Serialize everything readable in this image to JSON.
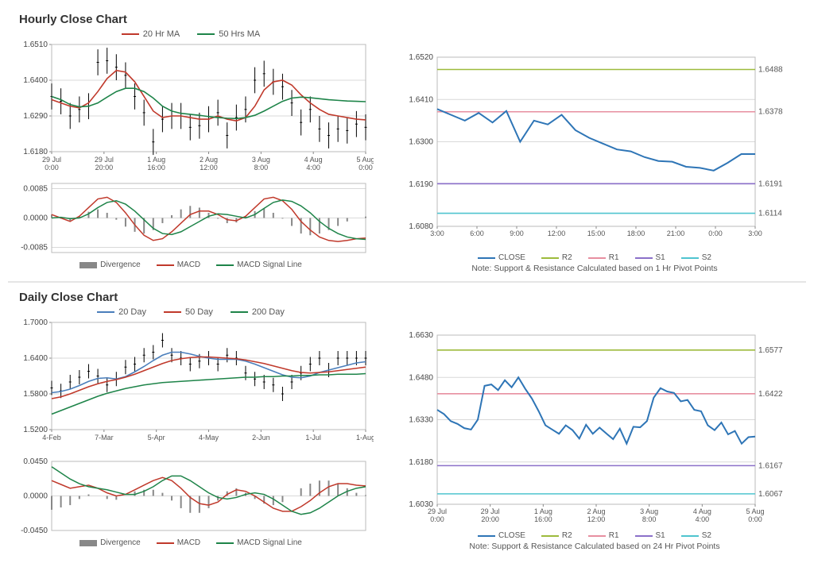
{
  "sections": {
    "hourly": {
      "title": "Hourly Close Chart",
      "price": {
        "legend": [
          {
            "label": "20 Hr MA",
            "color": "#c0392b"
          },
          {
            "label": "50 Hrs MA",
            "color": "#1e8449"
          }
        ],
        "ylim": [
          1.618,
          1.651
        ],
        "yticks": [
          1.618,
          1.629,
          1.64,
          1.651
        ],
        "xlabels": [
          "29 Jul\n0:00",
          "29 Jul\n20:00",
          "1 Aug\n16:00",
          "2 Aug\n12:00",
          "3 Aug\n8:00",
          "4 Aug\n4:00",
          "5 Aug\n0:00"
        ],
        "close": [
          1.635,
          1.6335,
          1.629,
          1.631,
          1.632,
          1.6455,
          1.646,
          1.644,
          1.6415,
          1.635,
          1.63,
          1.621,
          1.628,
          1.629,
          1.629,
          1.6255,
          1.626,
          1.628,
          1.63,
          1.623,
          1.6285,
          1.631,
          1.64,
          1.642,
          1.6395,
          1.638,
          1.633,
          1.627,
          1.631,
          1.625,
          1.623,
          1.625,
          1.6245,
          1.6265,
          1.6255
        ],
        "volatility": 0.004,
        "ma20": [
          1.634,
          1.633,
          1.632,
          1.6315,
          1.633,
          1.6365,
          1.6405,
          1.643,
          1.6425,
          1.6395,
          1.635,
          1.6305,
          1.6285,
          1.629,
          1.629,
          1.6285,
          1.628,
          1.628,
          1.629,
          1.628,
          1.6275,
          1.6285,
          1.632,
          1.637,
          1.6395,
          1.64,
          1.6385,
          1.6355,
          1.633,
          1.631,
          1.6295,
          1.629,
          1.6285,
          1.628,
          1.6278
        ],
        "ma50": [
          1.635,
          1.634,
          1.6325,
          1.6318,
          1.632,
          1.633,
          1.6348,
          1.6365,
          1.6375,
          1.6375,
          1.6365,
          1.6345,
          1.632,
          1.6305,
          1.6298,
          1.6295,
          1.6292,
          1.6288,
          1.6285,
          1.6283,
          1.6282,
          1.6285,
          1.6292,
          1.6305,
          1.632,
          1.6335,
          1.6345,
          1.6348,
          1.6346,
          1.6343,
          1.634,
          1.6338,
          1.6336,
          1.6335,
          1.6334
        ],
        "colors": {
          "ma20": "#c0392b",
          "ma50": "#1e8449",
          "price": "#000000",
          "bg": "#ffffff",
          "grid": "#d9d9d9"
        }
      },
      "macd": {
        "ylim": [
          -0.01,
          0.01
        ],
        "yticks": [
          -0.0085,
          0.0,
          0.0085
        ],
        "macd": [
          0.001,
          0.0,
          -0.001,
          0.0005,
          0.003,
          0.0055,
          0.006,
          0.0045,
          0.0015,
          -0.002,
          -0.005,
          -0.0065,
          -0.006,
          -0.004,
          -0.0015,
          0.001,
          0.002,
          0.002,
          0.001,
          -0.0005,
          -0.0008,
          0.0005,
          0.003,
          0.0055,
          0.006,
          0.005,
          0.0025,
          -0.001,
          -0.0035,
          -0.0055,
          -0.0065,
          -0.0068,
          -0.0065,
          -0.006,
          -0.0058
        ],
        "signal": [
          0.0,
          0.0002,
          -0.0002,
          0.0,
          0.0012,
          0.003,
          0.0045,
          0.005,
          0.004,
          0.002,
          -0.0005,
          -0.003,
          -0.0045,
          -0.0048,
          -0.004,
          -0.0025,
          -0.001,
          0.0005,
          0.0012,
          0.001,
          0.0005,
          0.0,
          0.001,
          0.0028,
          0.0045,
          0.0052,
          0.0048,
          0.0035,
          0.0015,
          -0.001,
          -0.003,
          -0.0045,
          -0.0055,
          -0.006,
          -0.0062
        ],
        "legend": [
          {
            "label": "Divergence",
            "type": "bar",
            "color": "#888888"
          },
          {
            "label": "MACD",
            "type": "line",
            "color": "#c0392b"
          },
          {
            "label": "MACD Signal Line",
            "type": "line",
            "color": "#1e8449"
          }
        ]
      },
      "pivot": {
        "ylim": [
          1.608,
          1.652
        ],
        "yticks": [
          1.608,
          1.619,
          1.63,
          1.641,
          1.652
        ],
        "xlabels": [
          "3:00",
          "6:00",
          "9:00",
          "12:00",
          "15:00",
          "18:00",
          "21:00",
          "0:00",
          "3:00"
        ],
        "close": [
          1.6385,
          1.637,
          1.6355,
          1.6375,
          1.635,
          1.638,
          1.63,
          1.6355,
          1.6345,
          1.637,
          1.633,
          1.631,
          1.6295,
          1.628,
          1.6275,
          1.626,
          1.625,
          1.6248,
          1.6235,
          1.6232,
          1.6225,
          1.6245,
          1.6268,
          1.6268
        ],
        "close_color": "#2e75b6",
        "levels": [
          {
            "name": "R2",
            "value": 1.6488,
            "color": "#9dbb3c"
          },
          {
            "name": "R1",
            "value": 1.6378,
            "color": "#e78fa0"
          },
          {
            "name": "S1",
            "value": 1.6191,
            "color": "#8b70c9"
          },
          {
            "name": "S2",
            "value": 1.6114,
            "color": "#4fc4cf"
          }
        ],
        "legend": [
          {
            "label": "CLOSE",
            "color": "#2e75b6"
          },
          {
            "label": "R2",
            "color": "#9dbb3c"
          },
          {
            "label": "R1",
            "color": "#e78fa0"
          },
          {
            "label": "S1",
            "color": "#8b70c9"
          },
          {
            "label": "S2",
            "color": "#4fc4cf"
          }
        ],
        "note": "Note: Support & Resistance Calculated based on 1 Hr Pivot Points"
      }
    },
    "daily": {
      "title": "Daily Close Chart",
      "price": {
        "legend": [
          {
            "label": "20 Day",
            "color": "#4a7ebb"
          },
          {
            "label": "50 Day",
            "color": "#c0392b"
          },
          {
            "label": "200 Day",
            "color": "#1e8449"
          }
        ],
        "ylim": [
          1.52,
          1.7
        ],
        "yticks": [
          1.52,
          1.58,
          1.64,
          1.7
        ],
        "xlabels": [
          "4-Feb",
          "7-Mar",
          "5-Apr",
          "4-May",
          "2-Jun",
          "1-Jul",
          "1-Aug"
        ],
        "close": [
          1.59,
          1.585,
          1.6,
          1.608,
          1.618,
          1.61,
          1.595,
          1.605,
          1.625,
          1.63,
          1.645,
          1.65,
          1.67,
          1.645,
          1.64,
          1.63,
          1.635,
          1.64,
          1.63,
          1.645,
          1.64,
          1.615,
          1.605,
          1.6,
          1.595,
          1.58,
          1.6,
          1.615,
          1.63,
          1.64,
          1.62,
          1.64,
          1.64,
          1.64,
          1.64
        ],
        "volatility": 0.012,
        "ma20": [
          1.582,
          1.584,
          1.588,
          1.594,
          1.601,
          1.606,
          1.607,
          1.605,
          1.609,
          1.617,
          1.626,
          1.636,
          1.645,
          1.65,
          1.65,
          1.647,
          1.643,
          1.64,
          1.638,
          1.638,
          1.638,
          1.635,
          1.63,
          1.624,
          1.618,
          1.612,
          1.608,
          1.607,
          1.61,
          1.616,
          1.62,
          1.624,
          1.628,
          1.632,
          1.634
        ],
        "ma50": [
          1.572,
          1.575,
          1.58,
          1.586,
          1.592,
          1.597,
          1.601,
          1.604,
          1.608,
          1.613,
          1.619,
          1.625,
          1.631,
          1.636,
          1.639,
          1.641,
          1.642,
          1.642,
          1.641,
          1.64,
          1.639,
          1.637,
          1.634,
          1.631,
          1.627,
          1.623,
          1.619,
          1.616,
          1.615,
          1.616,
          1.617,
          1.619,
          1.621,
          1.623,
          1.625
        ],
        "ma200": [
          1.546,
          1.552,
          1.558,
          1.564,
          1.57,
          1.576,
          1.581,
          1.585,
          1.589,
          1.592,
          1.595,
          1.597,
          1.599,
          1.6,
          1.601,
          1.602,
          1.603,
          1.604,
          1.605,
          1.606,
          1.607,
          1.608,
          1.608,
          1.609,
          1.609,
          1.61,
          1.61,
          1.611,
          1.611,
          1.612,
          1.612,
          1.613,
          1.613,
          1.613,
          1.614
        ],
        "colors": {
          "ma20": "#4a7ebb",
          "ma50": "#c0392b",
          "ma200": "#1e8449",
          "price": "#000000"
        }
      },
      "macd": {
        "ylim": [
          -0.045,
          0.045
        ],
        "yticks": [
          -0.045,
          0.0,
          0.045
        ],
        "macd": [
          0.02,
          0.015,
          0.01,
          0.012,
          0.014,
          0.01,
          0.004,
          0.0,
          0.002,
          0.008,
          0.014,
          0.02,
          0.024,
          0.02,
          0.01,
          -0.002,
          -0.01,
          -0.012,
          -0.008,
          0.002,
          0.008,
          0.006,
          0.0,
          -0.008,
          -0.016,
          -0.02,
          -0.02,
          -0.014,
          -0.006,
          0.004,
          0.012,
          0.016,
          0.016,
          0.014,
          0.013
        ],
        "signal": [
          0.038,
          0.03,
          0.022,
          0.016,
          0.012,
          0.01,
          0.008,
          0.005,
          0.002,
          0.002,
          0.006,
          0.012,
          0.02,
          0.026,
          0.026,
          0.02,
          0.012,
          0.004,
          -0.002,
          -0.004,
          -0.002,
          0.002,
          0.004,
          0.002,
          -0.004,
          -0.012,
          -0.02,
          -0.024,
          -0.022,
          -0.016,
          -0.008,
          0.0,
          0.006,
          0.01,
          0.012
        ],
        "legend": [
          {
            "label": "Divergence",
            "type": "bar",
            "color": "#888888"
          },
          {
            "label": "MACD",
            "type": "line",
            "color": "#c0392b"
          },
          {
            "label": "MACD Signal Line",
            "type": "line",
            "color": "#1e8449"
          }
        ]
      },
      "pivot": {
        "ylim": [
          1.603,
          1.663
        ],
        "yticks": [
          1.603,
          1.618,
          1.633,
          1.648,
          1.663
        ],
        "xlabels": [
          "29 Jul\n0:00",
          "29 Jul\n20:00",
          "1 Aug\n16:00",
          "2 Aug\n12:00",
          "3 Aug\n8:00",
          "4 Aug\n4:00",
          "5 Aug\n0:00"
        ],
        "close": [
          1.6365,
          1.635,
          1.6325,
          1.6315,
          1.63,
          1.6295,
          1.633,
          1.645,
          1.6455,
          1.6435,
          1.647,
          1.6445,
          1.648,
          1.644,
          1.6405,
          1.636,
          1.631,
          1.6295,
          1.628,
          1.631,
          1.6293,
          1.6263,
          1.6312,
          1.628,
          1.6302,
          1.6281,
          1.6261,
          1.6298,
          1.6245,
          1.6305,
          1.6303,
          1.6325,
          1.6408,
          1.6442,
          1.643,
          1.6425,
          1.6395,
          1.64,
          1.6365,
          1.636,
          1.631,
          1.6293,
          1.632,
          1.6278,
          1.629,
          1.6245,
          1.6268,
          1.627
        ],
        "close_color": "#2e75b6",
        "levels": [
          {
            "name": "R2",
            "value": 1.6577,
            "color": "#9dbb3c"
          },
          {
            "name": "R1",
            "value": 1.6422,
            "color": "#e78fa0"
          },
          {
            "name": "S1",
            "value": 1.6167,
            "color": "#8b70c9"
          },
          {
            "name": "S2",
            "value": 1.6067,
            "color": "#4fc4cf"
          }
        ],
        "legend": [
          {
            "label": "CLOSE",
            "color": "#2e75b6"
          },
          {
            "label": "R2",
            "color": "#9dbb3c"
          },
          {
            "label": "R1",
            "color": "#e78fa0"
          },
          {
            "label": "S1",
            "color": "#8b70c9"
          },
          {
            "label": "S2",
            "color": "#4fc4cf"
          }
        ],
        "note": "Note: Support & Resistance Calculated based on 24 Hr Pivot Points"
      }
    }
  }
}
